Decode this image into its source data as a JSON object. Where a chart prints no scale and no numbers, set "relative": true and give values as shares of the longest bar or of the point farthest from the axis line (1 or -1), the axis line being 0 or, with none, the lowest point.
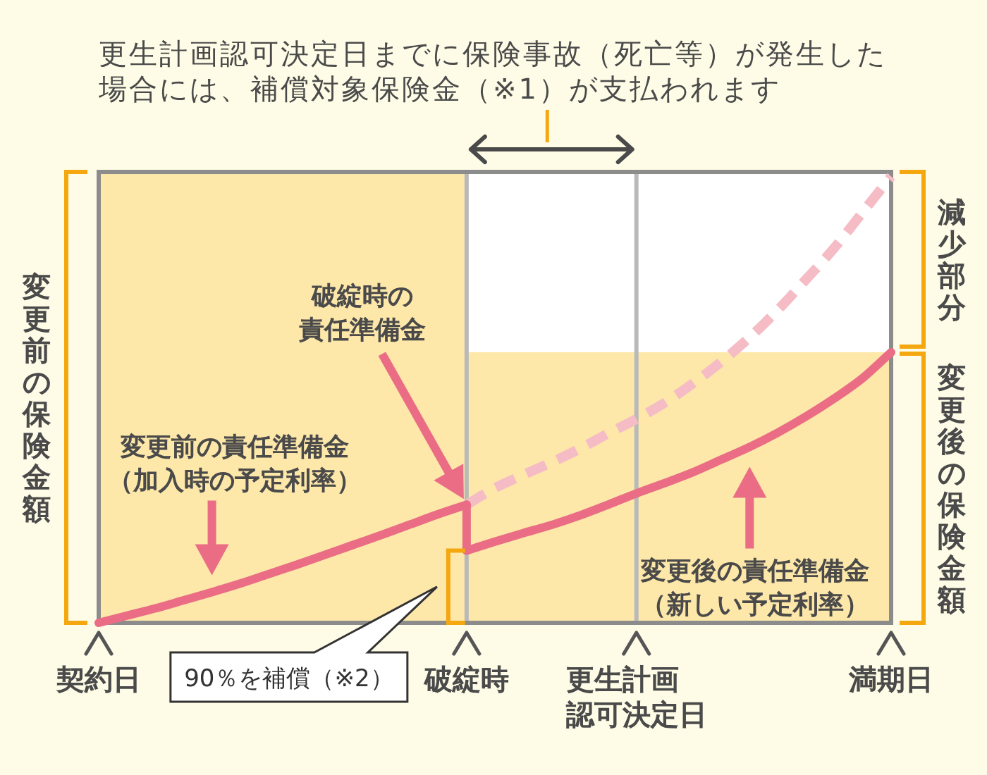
{
  "chart_data": {
    "type": "line",
    "relative": true,
    "categories": [
      "契約日",
      null,
      null,
      null,
      null,
      null,
      null,
      null,
      null,
      null,
      null,
      null,
      null,
      "破綻時",
      null,
      null,
      null,
      null,
      null,
      "更生計画認可決定日",
      null,
      null,
      null,
      null,
      null,
      null,
      null,
      null,
      "満期日"
    ],
    "grid": "x",
    "series": [
      {
        "type": "area",
        "color": "#fde7a9",
        "values": [
          1,
          1,
          1,
          1,
          1,
          1,
          1,
          1,
          1,
          1,
          1,
          1,
          1,
          1,
          null,
          null,
          null,
          null,
          null,
          null,
          null,
          null,
          null,
          null,
          null,
          null,
          null,
          null,
          null
        ]
      },
      {
        "type": "area",
        "color": "#fde7a9",
        "values": [
          null,
          null,
          null,
          null,
          null,
          null,
          null,
          null,
          null,
          null,
          null,
          null,
          null,
          0.6,
          0.6,
          0.6,
          0.6,
          0.6,
          0.6,
          0.6,
          0.6,
          0.6,
          0.6,
          0.6,
          0.6,
          0.6,
          0.6,
          0.6,
          0.6
        ]
      },
      {
        "type": "line",
        "color": "#f5bcc5",
        "line_style": "dashed",
        "values": [
          null,
          null,
          null,
          null,
          null,
          null,
          null,
          null,
          null,
          null,
          null,
          null,
          null,
          0.262,
          0.299,
          0.328,
          0.356,
          0.386,
          0.42,
          0.452,
          0.488,
          0.531,
          0.579,
          0.633,
          0.694,
          0.762,
          0.832,
          0.911,
          0.99
        ]
      },
      {
        "type": "line",
        "color": "#ea6d85",
        "line_style": "solid",
        "values": [
          0,
          0.016,
          0.032,
          0.05,
          0.068,
          0.087,
          0.108,
          0.129,
          0.151,
          0.173,
          0.195,
          0.218,
          0.241,
          0.262,
          null,
          null,
          null,
          null,
          null,
          null,
          null,
          null,
          null,
          null,
          null,
          null,
          null,
          null,
          null
        ]
      },
      {
        "type": "line",
        "color": "#ea6d85",
        "line_style": "solid",
        "x": [
          "破綻時",
          "破綻時"
        ],
        "values": [
          0.262,
          0.16
        ]
      },
      {
        "type": "line",
        "color": "#ea6d85",
        "line_style": "solid",
        "values": [
          null,
          null,
          null,
          null,
          null,
          null,
          null,
          null,
          null,
          null,
          null,
          null,
          null,
          0.16,
          0.18,
          0.199,
          0.217,
          0.238,
          0.262,
          0.287,
          0.31,
          0.334,
          0.362,
          0.39,
          0.422,
          0.458,
          0.498,
          0.543,
          0.6
        ]
      }
    ],
    "annotations": [
      "更生計画認可決定日までに保険事故（死亡等）が発生した場合には、補償対象保険金（※1）が支払われます",
      "変更前の保険金額",
      "減少部分",
      "変更後の保険金額",
      "破綻時の責任準備金",
      "変更前の責任準備金（加入時の予定利率）",
      "変更後の責任準備金（新しい予定利率）",
      "90％を補償（※2）"
    ]
  }
}
